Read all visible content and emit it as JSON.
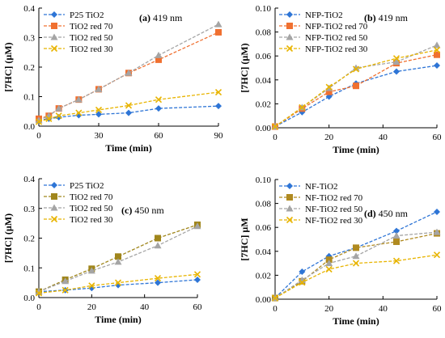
{
  "chart_data": [
    {
      "type": "line",
      "panel_label": "(a) 419 nm",
      "panel_letter": "(a)",
      "panel_rest": " 419 nm",
      "xlabel": "Time (min)",
      "ylabel": "[7HC] (µM)",
      "xlim": [
        0,
        90
      ],
      "ylim": [
        0,
        0.4
      ],
      "xticks": [
        0,
        30,
        60,
        90
      ],
      "yticks": [
        0,
        0.1,
        0.2,
        0.3,
        0.4
      ],
      "ytick_labels": [
        "0.0",
        "0.1",
        "0.2",
        "0.3",
        "0.4"
      ],
      "grid": false,
      "legend_position": "top-left",
      "series": [
        {
          "name": "P25 TiO2",
          "color": "#2E75D6",
          "marker": "diamond",
          "x": [
            0,
            5,
            10,
            20,
            30,
            45,
            60,
            90
          ],
          "y": [
            0.02,
            0.025,
            0.03,
            0.037,
            0.04,
            0.045,
            0.06,
            0.068
          ]
        },
        {
          "name": "TiO2 red 70",
          "color": "#F07030",
          "marker": "square",
          "x": [
            0,
            5,
            10,
            20,
            30,
            45,
            60,
            90
          ],
          "y": [
            0.025,
            0.035,
            0.06,
            0.09,
            0.125,
            0.18,
            0.225,
            0.318
          ]
        },
        {
          "name": "TiO2 red 50",
          "color": "#A5A5A5",
          "marker": "triangle",
          "x": [
            0,
            5,
            10,
            20,
            30,
            45,
            60,
            90
          ],
          "y": [
            0.02,
            0.035,
            0.06,
            0.09,
            0.125,
            0.18,
            0.24,
            0.345
          ]
        },
        {
          "name": "TiO2 red 30",
          "color": "#E8B400",
          "marker": "x",
          "x": [
            0,
            5,
            10,
            20,
            30,
            45,
            60,
            90
          ],
          "y": [
            0.015,
            0.025,
            0.035,
            0.045,
            0.055,
            0.07,
            0.09,
            0.115
          ]
        }
      ]
    },
    {
      "type": "line",
      "panel_label": "(b) 419 nm",
      "panel_letter": "(b)",
      "panel_rest": " 419 nm",
      "xlabel": "Time (min)",
      "ylabel": "[7HC] (µM)",
      "xlim": [
        0,
        60
      ],
      "ylim": [
        0,
        0.1
      ],
      "xticks": [
        0,
        20,
        40,
        60
      ],
      "yticks": [
        0,
        0.02,
        0.04,
        0.06,
        0.08,
        0.1
      ],
      "ytick_labels": [
        "0.00",
        "0.02",
        "0.04",
        "0.06",
        "0.08",
        "0.10"
      ],
      "grid": false,
      "legend_position": "top-left",
      "series": [
        {
          "name": "NFP-TiO2",
          "color": "#2E75D6",
          "marker": "diamond",
          "x": [
            0,
            10,
            20,
            30,
            45,
            60
          ],
          "y": [
            0.001,
            0.013,
            0.026,
            0.037,
            0.047,
            0.052
          ]
        },
        {
          "name": "NFP-TiO2 red 70",
          "color": "#F07030",
          "marker": "square",
          "x": [
            0,
            10,
            20,
            30,
            45,
            60
          ],
          "y": [
            0.001,
            0.016,
            0.03,
            0.035,
            0.054,
            0.061
          ]
        },
        {
          "name": "NFP-TiO2 red 50",
          "color": "#A5A5A5",
          "marker": "triangle",
          "x": [
            0,
            10,
            20,
            30,
            45,
            60
          ],
          "y": [
            0.001,
            0.017,
            0.033,
            0.05,
            0.055,
            0.069
          ]
        },
        {
          "name": "NFP-TiO2 red 30",
          "color": "#E8B400",
          "marker": "x",
          "x": [
            0,
            10,
            20,
            30,
            45,
            60
          ],
          "y": [
            0.001,
            0.017,
            0.034,
            0.049,
            0.058,
            0.065
          ]
        }
      ]
    },
    {
      "type": "line",
      "panel_label": "(c) 450 nm",
      "panel_letter": "(c)",
      "panel_rest": " 450 nm",
      "xlabel": "Time (min)",
      "ylabel": "[7HC] (µM)",
      "xlim": [
        0,
        60
      ],
      "ylim": [
        0,
        0.4
      ],
      "xticks": [
        0,
        20,
        40,
        60
      ],
      "yticks": [
        0,
        0.1,
        0.2,
        0.3,
        0.4
      ],
      "ytick_labels": [
        "0.0",
        "0.1",
        "0.2",
        "0.3",
        "0.4"
      ],
      "grid": false,
      "legend_position": "top-left",
      "series": [
        {
          "name": "P25 TiO2",
          "color": "#2E75D6",
          "marker": "diamond",
          "x": [
            0,
            10,
            20,
            30,
            45,
            60
          ],
          "y": [
            0.02,
            0.025,
            0.032,
            0.042,
            0.05,
            0.06
          ]
        },
        {
          "name": "TiO2 red 70",
          "color": "#A0861C",
          "marker": "square",
          "x": [
            0,
            10,
            20,
            30,
            45,
            60
          ],
          "y": [
            0.02,
            0.06,
            0.097,
            0.138,
            0.2,
            0.245
          ]
        },
        {
          "name": "TiO2 red 50",
          "color": "#A5A5A5",
          "marker": "triangle",
          "x": [
            0,
            10,
            20,
            30,
            45,
            60
          ],
          "y": [
            0.02,
            0.055,
            0.09,
            0.12,
            0.175,
            0.24
          ]
        },
        {
          "name": "TiO2 red 30",
          "color": "#E8B400",
          "marker": "x",
          "x": [
            0,
            10,
            20,
            30,
            45,
            60
          ],
          "y": [
            0.015,
            0.025,
            0.04,
            0.05,
            0.065,
            0.078
          ]
        }
      ]
    },
    {
      "type": "line",
      "panel_label": "(d) 450 nm",
      "panel_letter": "(d)",
      "panel_rest": " 450 nm",
      "xlabel": "Time (min)",
      "ylabel": "[7HC] µM",
      "xlim": [
        0,
        60
      ],
      "ylim": [
        0,
        0.1
      ],
      "xticks": [
        0,
        20,
        40,
        60
      ],
      "yticks": [
        0,
        0.02,
        0.04,
        0.06,
        0.08,
        0.1
      ],
      "ytick_labels": [
        "0.00",
        "0.02",
        "0.04",
        "0.06",
        "0.08",
        "0.10"
      ],
      "grid": false,
      "legend_position": "top-left",
      "series": [
        {
          "name": "NF-TiO2",
          "color": "#2E75D6",
          "marker": "diamond",
          "x": [
            0,
            10,
            20,
            30,
            45,
            60
          ],
          "y": [
            0.001,
            0.023,
            0.036,
            0.043,
            0.057,
            0.073
          ]
        },
        {
          "name": "NF-TiO2 red 70",
          "color": "#B08A20",
          "marker": "square",
          "x": [
            0,
            10,
            20,
            30,
            45,
            60
          ],
          "y": [
            0.001,
            0.015,
            0.033,
            0.043,
            0.048,
            0.055
          ]
        },
        {
          "name": "NF-TiO2 red 50",
          "color": "#A5A5A5",
          "marker": "triangle",
          "x": [
            0,
            10,
            20,
            30,
            45,
            60
          ],
          "y": [
            0.001,
            0.016,
            0.03,
            0.036,
            0.053,
            0.056
          ]
        },
        {
          "name": "NF-TiO2 red 30",
          "color": "#E8B400",
          "marker": "x",
          "x": [
            0,
            10,
            20,
            30,
            45,
            60
          ],
          "y": [
            0.001,
            0.014,
            0.025,
            0.03,
            0.032,
            0.037
          ]
        }
      ]
    }
  ]
}
